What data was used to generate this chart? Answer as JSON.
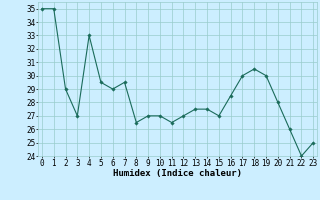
{
  "x": [
    0,
    1,
    2,
    3,
    4,
    5,
    6,
    7,
    8,
    9,
    10,
    11,
    12,
    13,
    14,
    15,
    16,
    17,
    18,
    19,
    20,
    21,
    22,
    23
  ],
  "y": [
    35,
    35,
    29,
    27,
    33,
    29.5,
    29,
    29.5,
    26.5,
    27,
    27,
    26.5,
    27,
    27.5,
    27.5,
    27,
    28.5,
    30,
    30.5,
    30,
    28,
    26,
    24,
    25
  ],
  "line_color": "#1a6b5a",
  "marker": "D",
  "marker_size": 1.8,
  "line_width": 0.8,
  "background_color": "#cceeff",
  "grid_color": "#99cccc",
  "xlabel": "Humidex (Indice chaleur)",
  "xlabel_fontsize": 6.5,
  "tick_fontsize": 5.5,
  "ylim": [
    24,
    35.5
  ],
  "yticks": [
    24,
    25,
    26,
    27,
    28,
    29,
    30,
    31,
    32,
    33,
    34,
    35
  ],
  "xticks": [
    0,
    1,
    2,
    3,
    4,
    5,
    6,
    7,
    8,
    9,
    10,
    11,
    12,
    13,
    14,
    15,
    16,
    17,
    18,
    19,
    20,
    21,
    22,
    23
  ],
  "xlim": [
    -0.3,
    23.3
  ]
}
